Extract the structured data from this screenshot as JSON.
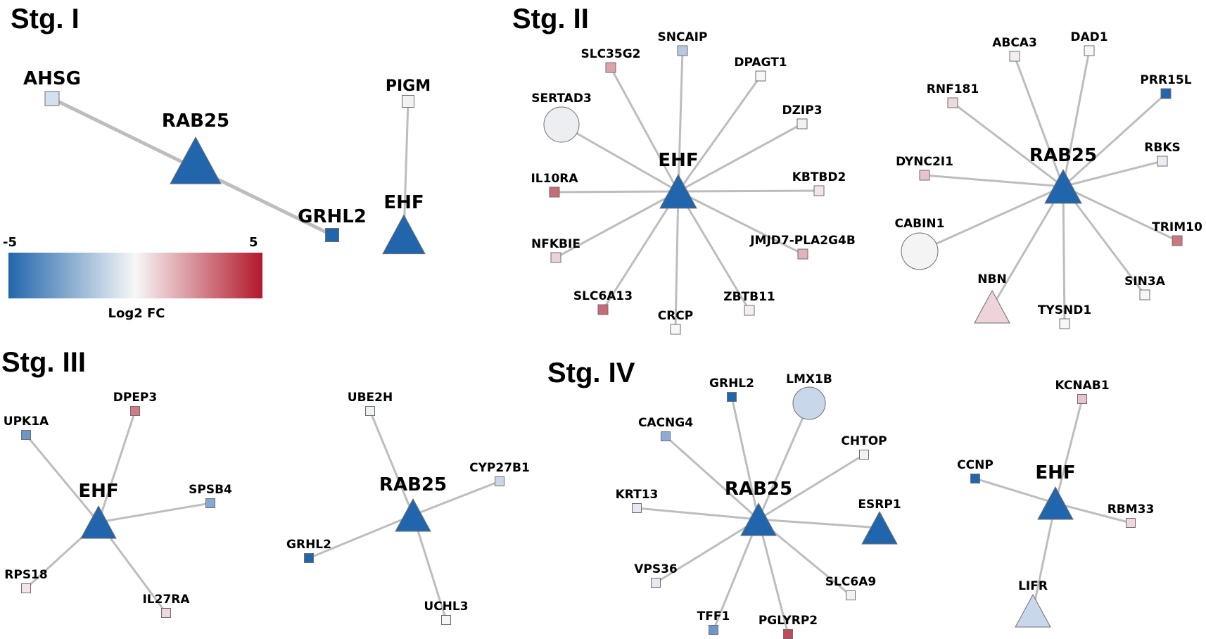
{
  "stages": [
    {
      "id": "s1",
      "title": "Stg. I"
    },
    {
      "id": "s2",
      "title": "Stg. II"
    },
    {
      "id": "s3",
      "title": "Stg. III"
    },
    {
      "id": "s4",
      "title": "Stg. IV"
    }
  ],
  "legend": {
    "min_label": "-5",
    "max_label": "5",
    "title": "Log2 FC",
    "colors": [
      "#2166ac",
      "#f7f7f7",
      "#b2182b"
    ]
  },
  "colors": {
    "edge": "#bdbdbd",
    "node_border": "#6e6e6e"
  },
  "nodes": [
    {
      "id": "s1_ahsg",
      "label": "AHSG",
      "shape": "square",
      "color": "#d3e0ef"
    },
    {
      "id": "s1_rab25",
      "label": "RAB25",
      "shape": "triangle",
      "color": "#2166ac"
    },
    {
      "id": "s1_grhl2",
      "label": "GRHL2",
      "shape": "square",
      "color": "#2166ac"
    },
    {
      "id": "s1_pigm",
      "label": "PIGM",
      "shape": "square",
      "color": "#f2f2f2"
    },
    {
      "id": "s1_ehf",
      "label": "EHF",
      "shape": "triangle",
      "color": "#2166ac"
    },
    {
      "id": "s2a_ehf",
      "label": "EHF",
      "shape": "triangle",
      "color": "#2166ac"
    },
    {
      "id": "s2a_sncaip",
      "label": "SNCAIP",
      "shape": "square",
      "color": "#b7c9e2"
    },
    {
      "id": "s2a_slc35g2",
      "label": "SLC35G2",
      "shape": "square",
      "color": "#dea3aa"
    },
    {
      "id": "s2a_dpagt1",
      "label": "DPAGT1",
      "shape": "square",
      "color": "#f7f7f7"
    },
    {
      "id": "s2a_sertad3",
      "label": "SERTAD3",
      "shape": "circle",
      "color": "#eceef1"
    },
    {
      "id": "s2a_dzip3",
      "label": "DZIP3",
      "shape": "square",
      "color": "#f2f2f2"
    },
    {
      "id": "s2a_il10ra",
      "label": "IL10RA",
      "shape": "square",
      "color": "#c86b77"
    },
    {
      "id": "s2a_kbtbd2",
      "label": "KBTBD2",
      "shape": "square",
      "color": "#f3e5e7"
    },
    {
      "id": "s2a_nfkbie",
      "label": "NFKBIE",
      "shape": "square",
      "color": "#ecd2d6"
    },
    {
      "id": "s2a_jmjd7",
      "label": "JMJD7-PLA2G4B",
      "shape": "square",
      "color": "#e2b3ba"
    },
    {
      "id": "s2a_slc6a13",
      "label": "SLC6A13",
      "shape": "square",
      "color": "#c86b77"
    },
    {
      "id": "s2a_zbtb11",
      "label": "ZBTB11",
      "shape": "square",
      "color": "#f5eeef"
    },
    {
      "id": "s2a_crcp",
      "label": "CRCP",
      "shape": "square",
      "color": "#f7f7f7"
    },
    {
      "id": "s2b_rab25",
      "label": "RAB25",
      "shape": "triangle",
      "color": "#2166ac"
    },
    {
      "id": "s2b_abca3",
      "label": "ABCA3",
      "shape": "square",
      "color": "#f5eeef"
    },
    {
      "id": "s2b_dad1",
      "label": "DAD1",
      "shape": "square",
      "color": "#f7f7f7"
    },
    {
      "id": "s2b_rnf181",
      "label": "RNF181",
      "shape": "square",
      "color": "#eedadd"
    },
    {
      "id": "s2b_prr15l",
      "label": "PRR15L",
      "shape": "square",
      "color": "#2166ac"
    },
    {
      "id": "s2b_dync2i1",
      "label": "DYNC2I1",
      "shape": "square",
      "color": "#e8c3c8"
    },
    {
      "id": "s2b_rbks",
      "label": "RBKS",
      "shape": "square",
      "color": "#eaeef3"
    },
    {
      "id": "s2b_cabin1",
      "label": "CABIN1",
      "shape": "circle",
      "color": "#f4f4f4"
    },
    {
      "id": "s2b_trim10",
      "label": "TRIM10",
      "shape": "square",
      "color": "#cc7681"
    },
    {
      "id": "s2b_nbn",
      "label": "NBN",
      "shape": "triangle",
      "color": "#ecd4d8"
    },
    {
      "id": "s2b_sin3a",
      "label": "SIN3A",
      "shape": "square",
      "color": "#f7f7f7"
    },
    {
      "id": "s2b_tysnd1",
      "label": "TYSND1",
      "shape": "square",
      "color": "#f7f7f7"
    },
    {
      "id": "s3a_ehf",
      "label": "EHF",
      "shape": "triangle",
      "color": "#2166ac"
    },
    {
      "id": "s3a_upk1a",
      "label": "UPK1A",
      "shape": "square",
      "color": "#6e97c9"
    },
    {
      "id": "s3a_dpep3",
      "label": "DPEP3",
      "shape": "square",
      "color": "#d47a87"
    },
    {
      "id": "s3a_spsb4",
      "label": "SPSB4",
      "shape": "square",
      "color": "#86a8d3"
    },
    {
      "id": "s3a_rps18",
      "label": "RPS18",
      "shape": "square",
      "color": "#f3e5e7"
    },
    {
      "id": "s3a_il27ra",
      "label": "IL27RA",
      "shape": "square",
      "color": "#eed8dc"
    },
    {
      "id": "s3b_rab25",
      "label": "RAB25",
      "shape": "triangle",
      "color": "#2166ac"
    },
    {
      "id": "s3b_ube2h",
      "label": "UBE2H",
      "shape": "square",
      "color": "#eef1f5"
    },
    {
      "id": "s3b_cyp27b1",
      "label": "CYP27B1",
      "shape": "square",
      "color": "#c9d7ea"
    },
    {
      "id": "s3b_grhl2",
      "label": "GRHL2",
      "shape": "square",
      "color": "#2166ac"
    },
    {
      "id": "s3b_uchl3",
      "label": "UCHL3",
      "shape": "square",
      "color": "#f7f7f7"
    },
    {
      "id": "s4a_rab25",
      "label": "RAB25",
      "shape": "triangle",
      "color": "#2166ac"
    },
    {
      "id": "s4a_grhl2",
      "label": "GRHL2",
      "shape": "square",
      "color": "#2166ac"
    },
    {
      "id": "s4a_lmx1b",
      "label": "LMX1B",
      "shape": "circle",
      "color": "#c9d7ea"
    },
    {
      "id": "s4a_cacng4",
      "label": "CACNG4",
      "shape": "square",
      "color": "#8eadd5"
    },
    {
      "id": "s4a_chtop",
      "label": "CHTOP",
      "shape": "square",
      "color": "#f2f2f2"
    },
    {
      "id": "s4a_krt13",
      "label": "KRT13",
      "shape": "square",
      "color": "#e4e9f2"
    },
    {
      "id": "s4a_esrp1",
      "label": "ESRP1",
      "shape": "triangle",
      "color": "#2166ac"
    },
    {
      "id": "s4a_vps36",
      "label": "VPS36",
      "shape": "square",
      "color": "#e4e9f2"
    },
    {
      "id": "s4a_slc6a9",
      "label": "SLC6A9",
      "shape": "square",
      "color": "#f2f2f2"
    },
    {
      "id": "s4a_tff1",
      "label": "TFF1",
      "shape": "square",
      "color": "#6e97c9"
    },
    {
      "id": "s4a_pglyrp2",
      "label": "PGLYRP2",
      "shape": "square",
      "color": "#c24a5a"
    },
    {
      "id": "s4b_ehf",
      "label": "EHF",
      "shape": "triangle",
      "color": "#2166ac"
    },
    {
      "id": "s4b_kcnab1",
      "label": "KCNAB1",
      "shape": "square",
      "color": "#e8c3c8"
    },
    {
      "id": "s4b_ccnp",
      "label": "CCNP",
      "shape": "square",
      "color": "#2166ac"
    },
    {
      "id": "s4b_rbm33",
      "label": "RBM33",
      "shape": "square",
      "color": "#eed8dc"
    },
    {
      "id": "s4b_lifr",
      "label": "LIFR",
      "shape": "triangle",
      "color": "#c9d7ea"
    }
  ],
  "edges": [
    [
      "s1_ahsg",
      "s1_grhl2"
    ],
    [
      "s1_pigm",
      "s1_ehf"
    ],
    [
      "s2a_ehf",
      "s2a_sncaip"
    ],
    [
      "s2a_ehf",
      "s2a_slc35g2"
    ],
    [
      "s2a_ehf",
      "s2a_dpagt1"
    ],
    [
      "s2a_ehf",
      "s2a_sertad3"
    ],
    [
      "s2a_ehf",
      "s2a_dzip3"
    ],
    [
      "s2a_ehf",
      "s2a_il10ra"
    ],
    [
      "s2a_ehf",
      "s2a_kbtbd2"
    ],
    [
      "s2a_ehf",
      "s2a_nfkbie"
    ],
    [
      "s2a_ehf",
      "s2a_jmjd7"
    ],
    [
      "s2a_ehf",
      "s2a_slc6a13"
    ],
    [
      "s2a_ehf",
      "s2a_zbtb11"
    ],
    [
      "s2a_ehf",
      "s2a_crcp"
    ],
    [
      "s2b_rab25",
      "s2b_abca3"
    ],
    [
      "s2b_rab25",
      "s2b_dad1"
    ],
    [
      "s2b_rab25",
      "s2b_rnf181"
    ],
    [
      "s2b_rab25",
      "s2b_prr15l"
    ],
    [
      "s2b_rab25",
      "s2b_dync2i1"
    ],
    [
      "s2b_rab25",
      "s2b_rbks"
    ],
    [
      "s2b_rab25",
      "s2b_cabin1"
    ],
    [
      "s2b_rab25",
      "s2b_trim10"
    ],
    [
      "s2b_rab25",
      "s2b_nbn"
    ],
    [
      "s2b_rab25",
      "s2b_sin3a"
    ],
    [
      "s2b_rab25",
      "s2b_tysnd1"
    ],
    [
      "s3a_ehf",
      "s3a_upk1a"
    ],
    [
      "s3a_ehf",
      "s3a_dpep3"
    ],
    [
      "s3a_ehf",
      "s3a_spsb4"
    ],
    [
      "s3a_ehf",
      "s3a_rps18"
    ],
    [
      "s3a_ehf",
      "s3a_il27ra"
    ],
    [
      "s3b_rab25",
      "s3b_ube2h"
    ],
    [
      "s3b_rab25",
      "s3b_cyp27b1"
    ],
    [
      "s3b_rab25",
      "s3b_grhl2"
    ],
    [
      "s3b_rab25",
      "s3b_uchl3"
    ],
    [
      "s4a_rab25",
      "s4a_grhl2"
    ],
    [
      "s4a_rab25",
      "s4a_lmx1b"
    ],
    [
      "s4a_rab25",
      "s4a_cacng4"
    ],
    [
      "s4a_rab25",
      "s4a_chtop"
    ],
    [
      "s4a_rab25",
      "s4a_krt13"
    ],
    [
      "s4a_rab25",
      "s4a_esrp1"
    ],
    [
      "s4a_rab25",
      "s4a_vps36"
    ],
    [
      "s4a_rab25",
      "s4a_slc6a9"
    ],
    [
      "s4a_rab25",
      "s4a_tff1"
    ],
    [
      "s4a_rab25",
      "s4a_pglyrp2"
    ],
    [
      "s4b_ehf",
      "s4b_kcnab1"
    ],
    [
      "s4b_ehf",
      "s4b_ccnp"
    ],
    [
      "s4b_ehf",
      "s4b_rbm33"
    ],
    [
      "s4b_ehf",
      "s4b_lifr"
    ]
  ]
}
